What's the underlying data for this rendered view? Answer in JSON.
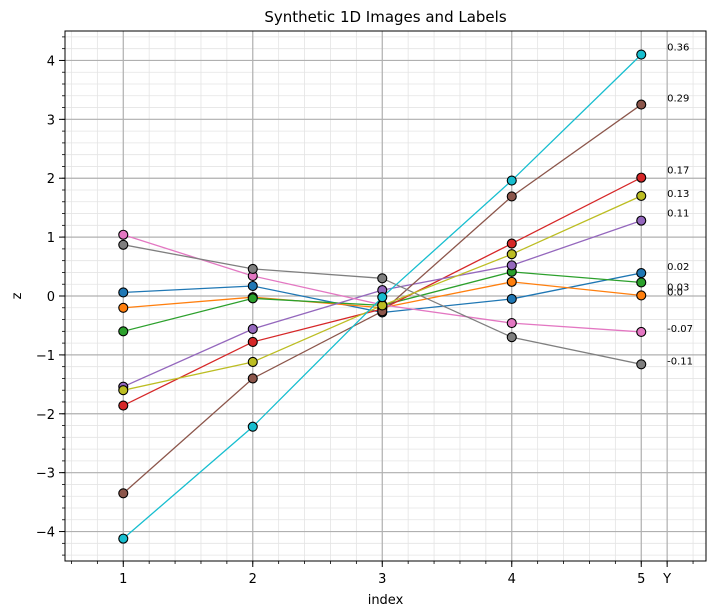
{
  "chart_data": {
    "type": "line",
    "title": "Synthetic 1D Images and Labels",
    "xlabel": "index",
    "ylabel": "z",
    "x": [
      1,
      2,
      3,
      4,
      5
    ],
    "x_extra_tick": "Y",
    "xlim": [
      0.55,
      5.5
    ],
    "ylim": [
      -4.5,
      4.5
    ],
    "xticks": [
      "1",
      "2",
      "3",
      "4",
      "5"
    ],
    "yticks": [
      "−4",
      "−3",
      "−2",
      "−1",
      "0",
      "1",
      "2",
      "3",
      "4"
    ],
    "grid": true,
    "legend": "none",
    "series": [
      {
        "color": "#1f77b4",
        "values": [
          0.06,
          0.17,
          -0.28,
          -0.05,
          0.39
        ],
        "label": "0.02"
      },
      {
        "color": "#ff7f0e",
        "values": [
          -0.2,
          -0.02,
          -0.2,
          0.24,
          0.01
        ],
        "label": "0.0"
      },
      {
        "color": "#2ca02c",
        "values": [
          -0.6,
          -0.04,
          -0.16,
          0.41,
          0.23
        ],
        "label": "0.03"
      },
      {
        "color": "#d62728",
        "values": [
          -1.86,
          -0.78,
          -0.22,
          0.89,
          2.01
        ],
        "label": "0.17"
      },
      {
        "color": "#9467bd",
        "values": [
          -1.54,
          -0.56,
          0.1,
          0.52,
          1.28
        ],
        "label": "0.11"
      },
      {
        "color": "#8c564b",
        "values": [
          -3.35,
          -1.4,
          -0.26,
          1.69,
          3.25
        ],
        "label": "0.29"
      },
      {
        "color": "#e377c2",
        "values": [
          1.04,
          0.34,
          -0.15,
          -0.46,
          -0.61
        ],
        "label": "-0.07"
      },
      {
        "color": "#7f7f7f",
        "values": [
          0.87,
          0.46,
          0.3,
          -0.7,
          -1.16
        ],
        "label": "-0.11"
      },
      {
        "color": "#bcbd22",
        "values": [
          -1.6,
          -1.12,
          -0.16,
          0.71,
          1.7
        ],
        "label": "0.13"
      },
      {
        "color": "#17becf",
        "values": [
          -4.12,
          -2.22,
          -0.02,
          1.96,
          4.1
        ],
        "label": "0.36"
      }
    ]
  }
}
